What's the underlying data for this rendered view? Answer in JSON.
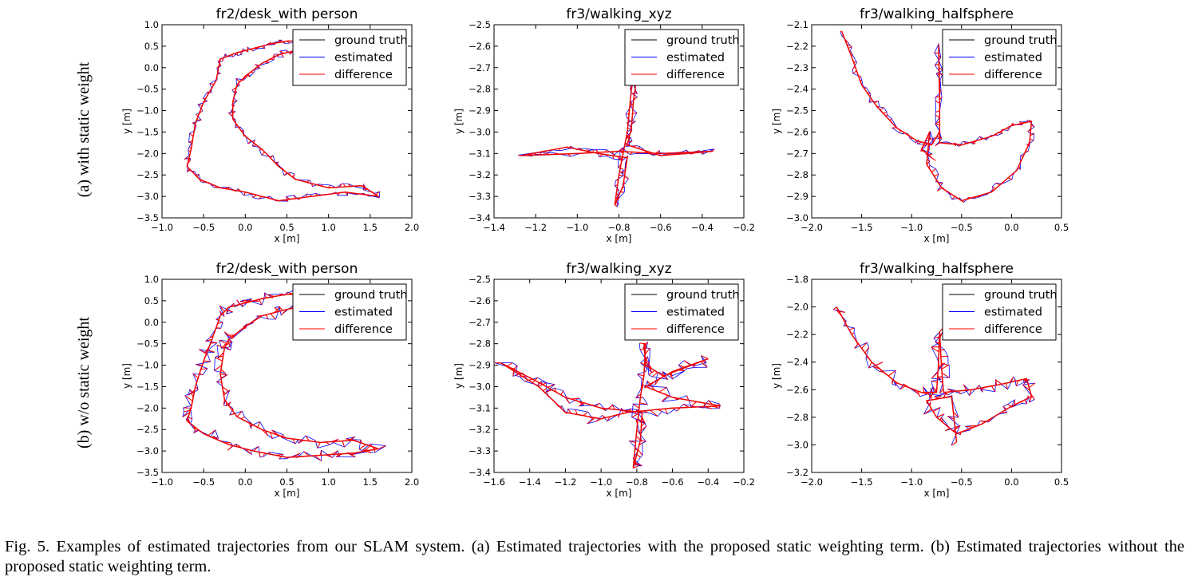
{
  "row_labels": [
    "(a) with static weight",
    "(b) w/o static weight"
  ],
  "legend_labels": [
    "ground truth",
    "estimated",
    "difference"
  ],
  "colors": {
    "ground_truth": "#000000",
    "estimated": "#0000ff",
    "difference": "#ff0000"
  },
  "caption": "Fig. 5.    Examples of estimated trajectories from our SLAM system. (a) Estimated trajectories with the proposed static weighting term. (b) Estimated trajectories without the proposed static weighting term.",
  "chart_data": [
    {
      "type": "line",
      "row": 0,
      "col": 0,
      "title": "fr2/desk_with person",
      "xlabel": "x [m]",
      "ylabel": "y [m]",
      "xlim": [
        -1.0,
        2.0
      ],
      "ylim": [
        -3.5,
        1.0
      ],
      "xticks": [
        -1.0,
        -0.5,
        0.0,
        0.5,
        1.0,
        1.5,
        2.0
      ],
      "yticks": [
        -3.5,
        -3.0,
        -2.5,
        -2.0,
        -1.5,
        -1.0,
        -0.5,
        0.0,
        0.5,
        1.0
      ],
      "legend": "top-right",
      "series": [
        {
          "name": "ground truth"
        },
        {
          "name": "estimated"
        },
        {
          "name": "difference"
        }
      ],
      "trajectory": [
        [
          1.0,
          0.62
        ],
        [
          0.5,
          0.62
        ],
        [
          0.3,
          0.55
        ],
        [
          0.1,
          0.45
        ],
        [
          -0.1,
          0.35
        ],
        [
          -0.3,
          0.2
        ],
        [
          -0.35,
          -0.3
        ],
        [
          -0.5,
          -0.8
        ],
        [
          -0.6,
          -1.3
        ],
        [
          -0.65,
          -1.9
        ],
        [
          -0.7,
          -2.3
        ],
        [
          -0.55,
          -2.6
        ],
        [
          -0.3,
          -2.8
        ],
        [
          0.0,
          -2.9
        ],
        [
          0.4,
          -3.1
        ],
        [
          0.8,
          -3.0
        ],
        [
          1.2,
          -2.9
        ],
        [
          1.6,
          -3.0
        ],
        [
          1.4,
          -2.75
        ],
        [
          1.0,
          -2.8
        ],
        [
          0.6,
          -2.6
        ],
        [
          0.4,
          -2.3
        ],
        [
          0.2,
          -1.9
        ],
        [
          0.0,
          -1.6
        ],
        [
          -0.15,
          -1.2
        ],
        [
          -0.15,
          -0.8
        ],
        [
          -0.1,
          -0.4
        ],
        [
          0.0,
          -0.2
        ],
        [
          0.2,
          0.1
        ],
        [
          0.4,
          0.3
        ],
        [
          0.6,
          0.4
        ],
        [
          0.8,
          0.45
        ],
        [
          1.0,
          0.5
        ]
      ]
    },
    {
      "type": "line",
      "row": 0,
      "col": 1,
      "title": "fr3/walking_xyz",
      "xlabel": "x [m]",
      "ylabel": "y [m]",
      "xlim": [
        -1.4,
        -0.2
      ],
      "ylim": [
        -3.4,
        -2.5
      ],
      "xticks": [
        -1.4,
        -1.2,
        -1.0,
        -0.8,
        -0.6,
        -0.4,
        -0.2
      ],
      "yticks": [
        -3.4,
        -3.3,
        -3.2,
        -3.1,
        -3.0,
        -2.9,
        -2.8,
        -2.7,
        -2.6,
        -2.5
      ],
      "legend": "top-right",
      "series": [
        {
          "name": "ground truth"
        },
        {
          "name": "estimated"
        },
        {
          "name": "difference"
        }
      ],
      "trajectory": [
        [
          -0.7,
          -2.6
        ],
        [
          -0.72,
          -2.7
        ],
        [
          -0.74,
          -2.8
        ],
        [
          -0.75,
          -2.9
        ],
        [
          -0.76,
          -3.0
        ],
        [
          -0.78,
          -3.1
        ],
        [
          -0.8,
          -3.2
        ],
        [
          -0.82,
          -3.34
        ],
        [
          -0.78,
          -3.25
        ],
        [
          -0.76,
          -3.12
        ],
        [
          -0.9,
          -3.1
        ],
        [
          -1.05,
          -3.07
        ],
        [
          -1.27,
          -3.11
        ],
        [
          -1.0,
          -3.1
        ],
        [
          -0.8,
          -3.09
        ],
        [
          -0.6,
          -3.1
        ],
        [
          -0.35,
          -3.09
        ],
        [
          -0.6,
          -3.11
        ],
        [
          -0.76,
          -3.06
        ],
        [
          -0.74,
          -2.98
        ],
        [
          -0.73,
          -2.85
        ],
        [
          -0.71,
          -2.72
        ],
        [
          -0.7,
          -2.62
        ]
      ]
    },
    {
      "type": "line",
      "row": 0,
      "col": 2,
      "title": "fr3/walking_halfsphere",
      "xlabel": "x [m]",
      "ylabel": "y [m]",
      "xlim": [
        -2.0,
        0.5
      ],
      "ylim": [
        -3.0,
        -2.1
      ],
      "xticks": [
        -2.0,
        -1.5,
        -1.0,
        -0.5,
        0.0,
        0.5
      ],
      "yticks": [
        -3.0,
        -2.9,
        -2.8,
        -2.7,
        -2.6,
        -2.5,
        -2.4,
        -2.3,
        -2.2,
        -2.1
      ],
      "legend": "top-right",
      "series": [
        {
          "name": "ground truth"
        },
        {
          "name": "estimated"
        },
        {
          "name": "difference"
        }
      ],
      "trajectory": [
        [
          -1.7,
          -2.13
        ],
        [
          -1.6,
          -2.25
        ],
        [
          -1.5,
          -2.38
        ],
        [
          -1.35,
          -2.48
        ],
        [
          -1.15,
          -2.58
        ],
        [
          -0.95,
          -2.64
        ],
        [
          -0.8,
          -2.66
        ],
        [
          -0.72,
          -2.6
        ],
        [
          -0.72,
          -2.4
        ],
        [
          -0.73,
          -2.2
        ],
        [
          -0.72,
          -2.45
        ],
        [
          -0.72,
          -2.65
        ],
        [
          -0.5,
          -2.66
        ],
        [
          -0.2,
          -2.62
        ],
        [
          0.0,
          -2.57
        ],
        [
          0.2,
          -2.55
        ],
        [
          0.18,
          -2.65
        ],
        [
          0.05,
          -2.78
        ],
        [
          -0.2,
          -2.88
        ],
        [
          -0.5,
          -2.92
        ],
        [
          -0.7,
          -2.86
        ],
        [
          -0.85,
          -2.75
        ],
        [
          -0.82,
          -2.6
        ],
        [
          -0.9,
          -2.68
        ],
        [
          -0.8,
          -2.72
        ]
      ]
    },
    {
      "type": "line",
      "row": 1,
      "col": 0,
      "title": "fr2/desk_with person",
      "xlabel": "x [m]",
      "ylabel": "y [m]",
      "xlim": [
        -1.0,
        2.0
      ],
      "ylim": [
        -3.5,
        1.0
      ],
      "xticks": [
        -1.0,
        -0.5,
        0.0,
        0.5,
        1.0,
        1.5,
        2.0
      ],
      "yticks": [
        -3.5,
        -3.0,
        -2.5,
        -2.0,
        -1.5,
        -1.0,
        -0.5,
        0.0,
        0.5,
        1.0
      ],
      "legend": "top-right",
      "series": [
        {
          "name": "ground truth"
        },
        {
          "name": "estimated"
        },
        {
          "name": "difference"
        }
      ],
      "trajectory": [
        [
          1.0,
          0.65
        ],
        [
          0.5,
          0.65
        ],
        [
          0.2,
          0.55
        ],
        [
          0.0,
          0.45
        ],
        [
          -0.2,
          0.35
        ],
        [
          -0.3,
          0.15
        ],
        [
          -0.4,
          -0.4
        ],
        [
          -0.5,
          -0.9
        ],
        [
          -0.6,
          -1.5
        ],
        [
          -0.65,
          -2.0
        ],
        [
          -0.7,
          -2.3
        ],
        [
          -0.5,
          -2.6
        ],
        [
          -0.2,
          -2.85
        ],
        [
          0.1,
          -3.0
        ],
        [
          0.5,
          -3.15
        ],
        [
          0.9,
          -3.1
        ],
        [
          1.3,
          -3.05
        ],
        [
          1.6,
          -2.95
        ],
        [
          1.3,
          -2.75
        ],
        [
          0.9,
          -2.8
        ],
        [
          0.5,
          -2.7
        ],
        [
          0.2,
          -2.5
        ],
        [
          -0.1,
          -2.2
        ],
        [
          -0.25,
          -1.8
        ],
        [
          -0.3,
          -1.2
        ],
        [
          -0.25,
          -0.6
        ],
        [
          -0.2,
          -0.4
        ],
        [
          0.0,
          -0.1
        ],
        [
          0.2,
          0.15
        ],
        [
          0.5,
          0.3
        ],
        [
          0.8,
          0.4
        ],
        [
          1.0,
          0.5
        ]
      ]
    },
    {
      "type": "line",
      "row": 1,
      "col": 1,
      "title": "fr3/walking_xyz",
      "xlabel": "x [m]",
      "ylabel": "y [m]",
      "xlim": [
        -1.6,
        -0.2
      ],
      "ylim": [
        -3.4,
        -2.5
      ],
      "xticks": [
        -1.6,
        -1.4,
        -1.2,
        -1.0,
        -0.8,
        -0.6,
        -0.4,
        -0.2
      ],
      "yticks": [
        -3.4,
        -3.3,
        -3.2,
        -3.1,
        -3.0,
        -2.9,
        -2.8,
        -2.7,
        -2.6,
        -2.5
      ],
      "legend": "top-right",
      "series": [
        {
          "name": "ground truth"
        },
        {
          "name": "estimated"
        },
        {
          "name": "difference"
        }
      ],
      "trajectory": [
        [
          -0.75,
          -2.8
        ],
        [
          -0.76,
          -2.95
        ],
        [
          -0.78,
          -3.05
        ],
        [
          -0.8,
          -3.2
        ],
        [
          -0.82,
          -3.38
        ],
        [
          -0.78,
          -3.25
        ],
        [
          -0.77,
          -3.12
        ],
        [
          -1.0,
          -3.1
        ],
        [
          -1.2,
          -3.05
        ],
        [
          -1.35,
          -2.98
        ],
        [
          -1.56,
          -2.89
        ],
        [
          -1.35,
          -3.0
        ],
        [
          -1.2,
          -3.12
        ],
        [
          -1.0,
          -3.15
        ],
        [
          -0.85,
          -3.12
        ],
        [
          -0.6,
          -3.1
        ],
        [
          -0.33,
          -3.09
        ],
        [
          -0.6,
          -3.05
        ],
        [
          -0.75,
          -3.0
        ],
        [
          -0.6,
          -2.93
        ],
        [
          -0.4,
          -2.87
        ],
        [
          -0.65,
          -2.95
        ],
        [
          -0.75,
          -2.9
        ],
        [
          -0.76,
          -2.8
        ]
      ]
    },
    {
      "type": "line",
      "row": 1,
      "col": 2,
      "title": "fr3/walking_halfsphere",
      "xlabel": "x [m]",
      "ylabel": "y [m]",
      "xlim": [
        -2.0,
        0.5
      ],
      "ylim": [
        -3.2,
        -1.8
      ],
      "xticks": [
        -2.0,
        -1.5,
        -1.0,
        -0.5,
        0.0,
        0.5
      ],
      "yticks": [
        -3.2,
        -3.0,
        -2.8,
        -2.6,
        -2.4,
        -2.2,
        -2.0,
        -1.8
      ],
      "legend": "top-right",
      "series": [
        {
          "name": "ground truth"
        },
        {
          "name": "estimated"
        },
        {
          "name": "difference"
        }
      ],
      "trajectory": [
        [
          -1.75,
          -2.0
        ],
        [
          -1.6,
          -2.2
        ],
        [
          -1.4,
          -2.4
        ],
        [
          -1.15,
          -2.55
        ],
        [
          -0.9,
          -2.62
        ],
        [
          -0.75,
          -2.62
        ],
        [
          -0.73,
          -2.4
        ],
        [
          -0.72,
          -2.18
        ],
        [
          -0.7,
          -2.45
        ],
        [
          -0.68,
          -2.62
        ],
        [
          -0.4,
          -2.6
        ],
        [
          -0.1,
          -2.56
        ],
        [
          0.15,
          -2.52
        ],
        [
          0.2,
          -2.65
        ],
        [
          0.0,
          -2.72
        ],
        [
          -0.3,
          -2.85
        ],
        [
          -0.55,
          -2.92
        ],
        [
          -0.75,
          -2.8
        ],
        [
          -0.85,
          -2.68
        ],
        [
          -0.6,
          -2.65
        ],
        [
          -0.55,
          -2.98
        ]
      ]
    }
  ]
}
